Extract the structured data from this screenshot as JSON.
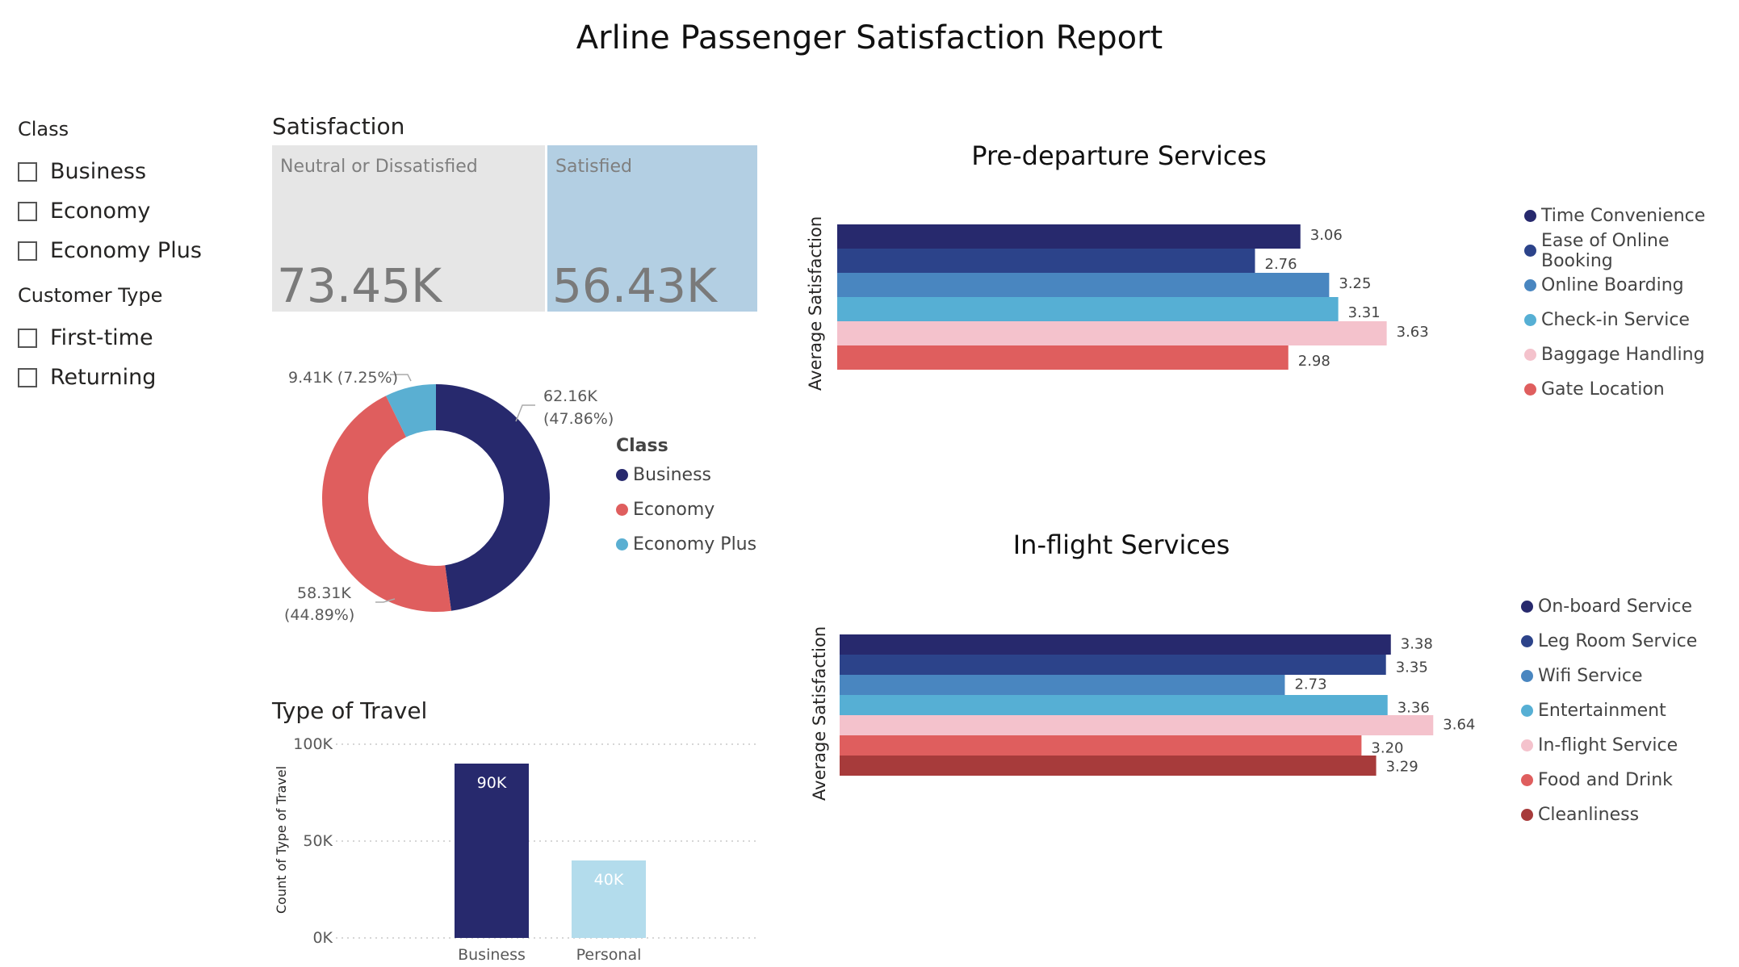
{
  "report": {
    "title": "Arline Passenger Satisfaction Report"
  },
  "slicers": {
    "class": {
      "header": "Class",
      "items": [
        "Business",
        "Economy",
        "Economy Plus"
      ]
    },
    "customer_type": {
      "header": "Customer Type",
      "items": [
        "First-time",
        "Returning"
      ]
    }
  },
  "satisfaction": {
    "title": "Satisfaction",
    "tiles": [
      {
        "label": "Neutral or Dissatisfied",
        "value": "73.45K",
        "color": "#e6e6e6"
      },
      {
        "label": "Satisfied",
        "value": "56.43K",
        "color": "#b3cfe3"
      }
    ]
  },
  "class_donut": {
    "legend_title": "Class",
    "slices": [
      {
        "name": "Business",
        "value": 62.16,
        "label_value": "62.16K",
        "label_pct": "(47.86%)",
        "color": "#27296d"
      },
      {
        "name": "Economy",
        "value": 58.31,
        "label_value": "58.31K",
        "label_pct": "(44.89%)",
        "color": "#df5e5e"
      },
      {
        "name": "Economy Plus",
        "value": 9.41,
        "label_value": "9.41K",
        "label_pct": "(7.25%)",
        "label_combined": "9.41K (7.25%)",
        "color": "#5aafd2"
      }
    ]
  },
  "type_of_travel": {
    "title": "Type of Travel",
    "ylabel": "Count of Type of Travel",
    "yticks": [
      "100K",
      "50K",
      "0K"
    ],
    "ylim": [
      0,
      100000
    ],
    "bars": [
      {
        "category": "Business",
        "value": 90000,
        "label": "90K",
        "color": "#27296d"
      },
      {
        "category": "Personal",
        "value": 40000,
        "label": "40K",
        "color": "#b3dcec"
      }
    ]
  },
  "chart_data": [
    {
      "type": "bar",
      "title": "Pre-departure Services",
      "ylabel": "Average Satisfaction",
      "orientation": "horizontal",
      "legend_position": "right",
      "series": [
        {
          "name": "Time Convenience",
          "value": 3.06,
          "label": "3.06",
          "color": "#27296d"
        },
        {
          "name": "Ease of Online Booking",
          "value": 2.76,
          "label": "2.76",
          "color": "#2c438a"
        },
        {
          "name": "Online Boarding",
          "value": 3.25,
          "label": "3.25",
          "color": "#4986c0"
        },
        {
          "name": "Check-in Service",
          "value": 3.31,
          "label": "3.31",
          "color": "#56afd4"
        },
        {
          "name": "Baggage Handling",
          "value": 3.63,
          "label": "3.63",
          "color": "#f4c2cc"
        },
        {
          "name": "Gate Location",
          "value": 2.98,
          "label": "2.98",
          "color": "#df5e5e"
        }
      ]
    },
    {
      "type": "bar",
      "title": "In-flight Services",
      "ylabel": "Average Satisfaction",
      "orientation": "horizontal",
      "legend_position": "right",
      "series": [
        {
          "name": "On-board Service",
          "value": 3.38,
          "label": "3.38",
          "color": "#27296d"
        },
        {
          "name": "Leg Room Service",
          "value": 3.35,
          "label": "3.35",
          "color": "#2c438a"
        },
        {
          "name": "Wifi Service",
          "value": 2.73,
          "label": "2.73",
          "color": "#4986c0"
        },
        {
          "name": "Entertainment",
          "value": 3.36,
          "label": "3.36",
          "color": "#56afd4"
        },
        {
          "name": "In-flight Service",
          "value": 3.64,
          "label": "3.64",
          "color": "#f4c2cc"
        },
        {
          "name": "Food and Drink",
          "value": 3.2,
          "label": "3.20",
          "color": "#df5e5e"
        },
        {
          "name": "Cleanliness",
          "value": 3.29,
          "label": "3.29",
          "color": "#a73b3b"
        }
      ]
    }
  ]
}
